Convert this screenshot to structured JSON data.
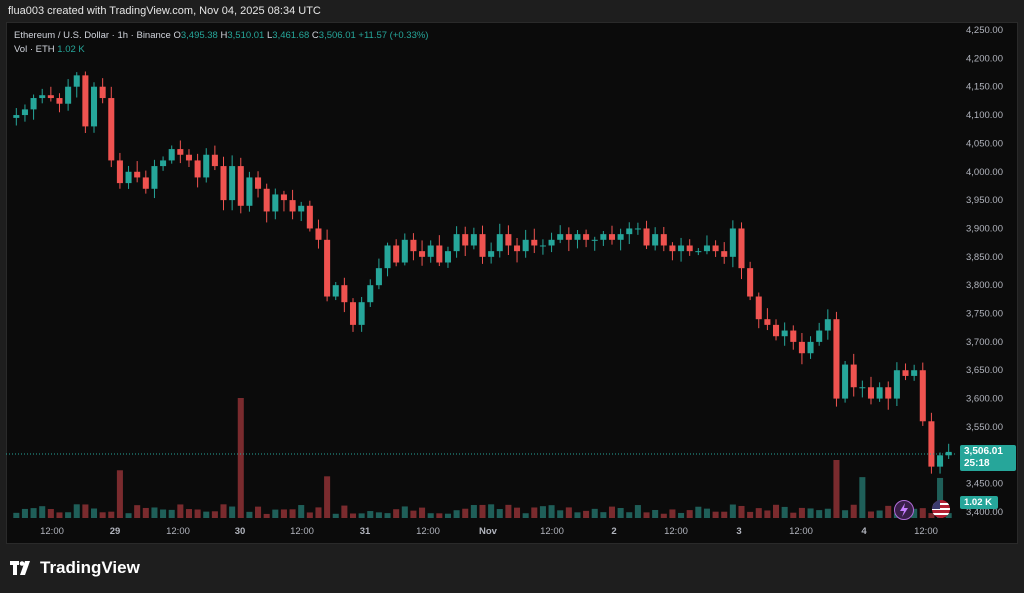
{
  "header": {
    "caption": "flua003 created with TradingView.com, Nov 04, 2025 08:34 UTC"
  },
  "legend": {
    "symbol": "Ethereum / U.S. Dollar · 1h · Binance",
    "o_label": "O",
    "o_value": "3,495.38",
    "h_label": "H",
    "h_value": "3,510.01",
    "l_label": "L",
    "l_value": "3,461.68",
    "c_label": "C",
    "c_value": "3,506.01",
    "change": "+11.57 (+0.33%)",
    "vol_label": "Vol · ETH",
    "vol_value": "1.02 K"
  },
  "price_tag": {
    "price": "3,506.01",
    "countdown": "25:18"
  },
  "vol_tag": "1.02 K",
  "brand": {
    "name": "TradingView"
  },
  "colors": {
    "up": "#26a69a",
    "down": "#ef5350",
    "up_vol": "#1f5f59",
    "down_vol": "#7a2b2e"
  },
  "icons": {
    "flash": "lightning-icon",
    "flag": "us-flag-icon"
  },
  "chart_data": {
    "type": "candlestick",
    "title": "Ethereum / U.S. Dollar · 1h · Binance",
    "y_axis": {
      "ylim": [
        3400,
        4250
      ],
      "ticks": [
        "4,250.00",
        "4,200.00",
        "4,150.00",
        "4,100.00",
        "4,050.00",
        "4,000.00",
        "3,950.00",
        "3,900.00",
        "3,850.00",
        "3,800.00",
        "3,750.00",
        "3,700.00",
        "3,650.00",
        "3,600.00",
        "3,550.00",
        "3,500.00",
        "3,450.00",
        "3,400.00"
      ]
    },
    "x_axis": {
      "ticks": [
        "12:00",
        "29",
        "12:00",
        "30",
        "12:00",
        "31",
        "12:00",
        "Nov",
        "12:00",
        "2",
        "12:00",
        "3",
        "12:00",
        "4",
        "12:00"
      ]
    },
    "last_price": 3506.01,
    "closes": [
      4100,
      4110,
      4130,
      4135,
      4130,
      4120,
      4150,
      4170,
      4080,
      4150,
      4130,
      4020,
      3980,
      4000,
      3990,
      3970,
      4010,
      4020,
      4040,
      4030,
      4020,
      3990,
      4030,
      4010,
      3950,
      4010,
      3940,
      3990,
      3970,
      3930,
      3960,
      3950,
      3930,
      3940,
      3900,
      3880,
      3780,
      3800,
      3770,
      3730,
      3770,
      3800,
      3830,
      3870,
      3840,
      3880,
      3860,
      3850,
      3870,
      3840,
      3860,
      3890,
      3870,
      3890,
      3850,
      3860,
      3890,
      3870,
      3860,
      3880,
      3870,
      3870,
      3880,
      3890,
      3880,
      3890,
      3880,
      3880,
      3890,
      3880,
      3890,
      3900,
      3900,
      3870,
      3890,
      3870,
      3860,
      3870,
      3860,
      3860,
      3870,
      3860,
      3850,
      3900,
      3830,
      3780,
      3740,
      3730,
      3710,
      3720,
      3700,
      3680,
      3700,
      3720,
      3740,
      3600,
      3660,
      3620,
      3620,
      3600,
      3620,
      3600,
      3650,
      3640,
      3650,
      3560,
      3480,
      3500,
      3506
    ],
    "volume_note": "volume bars below price, max spikes near Oct 29 and Nov 3"
  }
}
